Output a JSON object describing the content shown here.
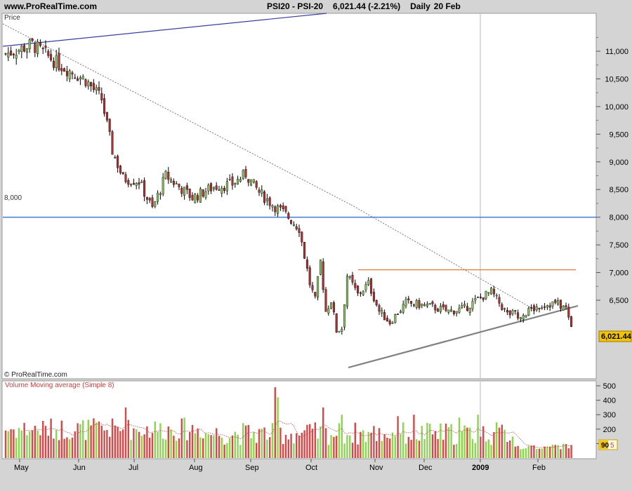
{
  "header": {
    "site": "www.ProRealTime.com",
    "instrument": "PSI20 - PSI-20",
    "last_change": "6,021.44 (-2.21%)",
    "period": "Daily",
    "date": "20 Feb"
  },
  "price_panel": {
    "label": "Price",
    "level_label": "8,000",
    "last_price_label": "6,021.44",
    "copyright": "© ProRealTime.com"
  },
  "volume_panel": {
    "label": "Volume Moving average (Simple 8)",
    "last_badge_a": "90",
    "last_badge_b": "5"
  },
  "colors": {
    "up": "#8ad84a",
    "down": "#d84848",
    "candle_up": "#88c060",
    "candle_down": "#b03030",
    "level_line": "#4f86d1",
    "resistance": "#e07a3a",
    "support": "#808080",
    "trend_top": "#3c3ca0",
    "price_badge": "#f2c400"
  },
  "chart_data": [
    {
      "type": "candlestick",
      "ylim": [
        5500,
        11800
      ],
      "yticks": [
        6500,
        7000,
        7500,
        8000,
        8500,
        9000,
        9500,
        10000,
        10500,
        11000
      ],
      "ytick_labels": [
        "6,500",
        "7,000",
        "7,500",
        "8,000",
        "8,500",
        "9,000",
        "9,500",
        "10,000",
        "10,500",
        "11,000"
      ],
      "months": [
        "May",
        "Jun",
        "Jul",
        "Aug",
        "Sep",
        "Oct",
        "Nov",
        "Dec",
        "2009",
        "Feb"
      ],
      "horizontal_level": 8000,
      "resistance_level": 7050,
      "last": 6021.44,
      "close_path": [
        [
          0,
          10950
        ],
        [
          10,
          11120
        ],
        [
          20,
          10760
        ],
        [
          30,
          10480
        ],
        [
          36,
          10130
        ],
        [
          40,
          9200
        ],
        [
          44,
          8700
        ],
        [
          50,
          8650
        ],
        [
          55,
          8150
        ],
        [
          60,
          8750
        ],
        [
          70,
          8350
        ],
        [
          78,
          8550
        ],
        [
          85,
          8600
        ],
        [
          90,
          8780
        ],
        [
          95,
          8450
        ],
        [
          100,
          8230
        ],
        [
          105,
          8050
        ],
        [
          110,
          7800
        ],
        [
          114,
          6800
        ],
        [
          116,
          6500
        ],
        [
          118,
          7200
        ],
        [
          120,
          6300
        ],
        [
          122,
          6500
        ],
        [
          124,
          5950
        ],
        [
          126,
          6000
        ],
        [
          128,
          6950
        ],
        [
          132,
          6600
        ],
        [
          136,
          6800
        ],
        [
          140,
          6300
        ],
        [
          144,
          6100
        ],
        [
          150,
          6450
        ],
        [
          158,
          6400
        ],
        [
          166,
          6300
        ],
        [
          172,
          6350
        ],
        [
          178,
          6550
        ],
        [
          182,
          6650
        ],
        [
          188,
          6250
        ],
        [
          194,
          6250
        ],
        [
          200,
          6400
        ],
        [
          206,
          6450
        ],
        [
          210,
          6350
        ],
        [
          212,
          6020
        ]
      ]
    },
    {
      "type": "bar",
      "series": [
        {
          "name": "Volume"
        },
        {
          "name": "Moving average (Simple 8)"
        }
      ],
      "ylim": [
        0,
        530
      ],
      "yticks": [
        100,
        200,
        300,
        400,
        500
      ],
      "ytick_labels": [
        "100",
        "200",
        "300",
        "400",
        "500"
      ],
      "last_value": 90
    }
  ]
}
